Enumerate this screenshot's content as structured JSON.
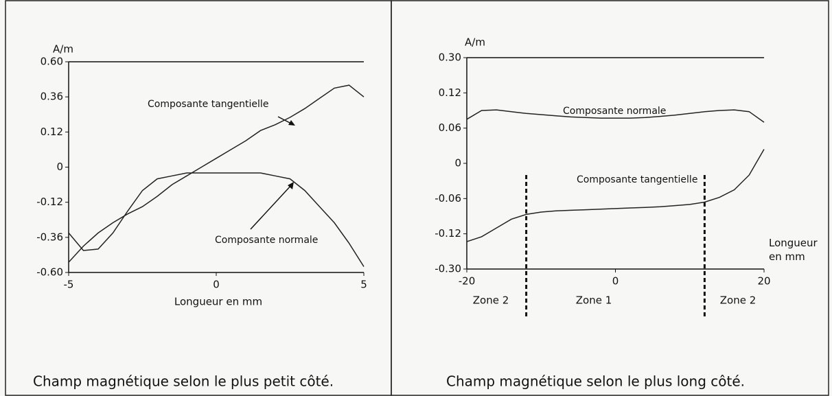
{
  "chart_data": [
    {
      "type": "line",
      "y_label": "A/m",
      "x_label": "Longueur en mm",
      "caption": "Champ magnétique selon le plus petit côté.",
      "x": [
        -5,
        -4.5,
        -4,
        -3.5,
        -3,
        -2.5,
        -2,
        -1.5,
        -1,
        -0.5,
        0,
        0.5,
        1,
        1.5,
        2,
        2.5,
        3,
        3.5,
        4,
        4.5,
        5
      ],
      "series": [
        {
          "name": "Composante tangentielle",
          "color": "#222222",
          "values": [
            -0.53,
            -0.42,
            -0.33,
            -0.26,
            -0.2,
            -0.15,
            -0.1,
            -0.06,
            -0.03,
            0,
            0.03,
            0.06,
            0.09,
            0.13,
            0.17,
            0.22,
            0.28,
            0.35,
            0.42,
            0.44,
            0.36
          ]
        },
        {
          "name": "Composante normale",
          "color": "#222222",
          "values": [
            -0.33,
            -0.45,
            -0.44,
            -0.33,
            -0.18,
            -0.08,
            -0.04,
            -0.03,
            -0.02,
            -0.02,
            -0.02,
            -0.02,
            -0.02,
            -0.02,
            -0.03,
            -0.04,
            -0.08,
            -0.15,
            -0.26,
            -0.4,
            -0.56
          ]
        }
      ],
      "xlim": [
        -5,
        5
      ],
      "xticks": [
        -5,
        0,
        5
      ],
      "ylim": [
        -0.6,
        0.6
      ],
      "yticks": [
        {
          "value": 0.6,
          "label": "0.60"
        },
        0.36,
        0.12,
        0,
        -0.12,
        -0.36,
        {
          "value": -0.6,
          "label": "-0.60"
        }
      ]
    },
    {
      "type": "line",
      "y_label": "A/m",
      "x_label": "Longueur en mm",
      "caption": "Champ magnétique selon le plus long côté.",
      "x": [
        -20,
        -18,
        -16,
        -14,
        -12,
        -10,
        -8,
        -6,
        -4,
        -2,
        0,
        2,
        4,
        6,
        8,
        10,
        12,
        14,
        16,
        18,
        20
      ],
      "series": [
        {
          "name": "Composante normale",
          "color": "#222222",
          "values": [
            0.075,
            0.09,
            0.091,
            0.088,
            0.085,
            0.083,
            0.081,
            0.079,
            0.078,
            0.077,
            0.077,
            0.077,
            0.078,
            0.08,
            0.082,
            0.085,
            0.088,
            0.09,
            0.091,
            0.088,
            0.07
          ]
        },
        {
          "name": "Composante tangentielle",
          "color": "#222222",
          "values": [
            -0.16,
            -0.135,
            -0.11,
            -0.095,
            -0.087,
            -0.083,
            -0.081,
            -0.08,
            -0.079,
            -0.078,
            -0.077,
            -0.076,
            -0.075,
            -0.074,
            -0.072,
            -0.07,
            -0.066,
            -0.058,
            -0.045,
            -0.02,
            0.024
          ]
        }
      ],
      "xlim": [
        -20,
        20
      ],
      "xticks": [
        -20,
        0,
        20
      ],
      "ylim": [
        -0.3,
        0.3
      ],
      "yticks": [
        {
          "value": 0.3,
          "label": "0.30"
        },
        0.12,
        0.06,
        0,
        -0.06,
        -0.12,
        {
          "value": -0.3,
          "label": "-0.30"
        }
      ],
      "zone_boundaries": [
        -12,
        12
      ],
      "zones": [
        "Zone 2",
        "Zone 1",
        "Zone 2"
      ]
    }
  ]
}
